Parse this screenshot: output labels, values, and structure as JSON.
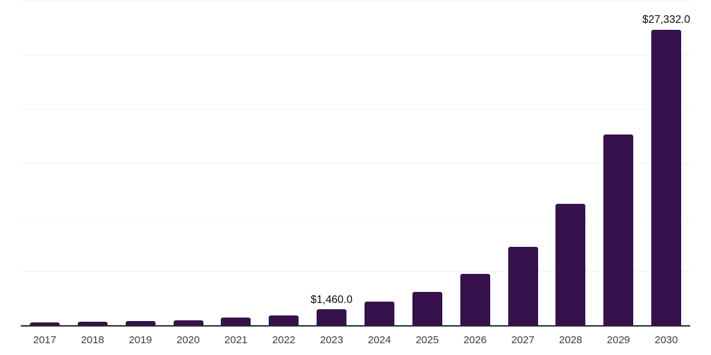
{
  "chart_data": {
    "type": "bar",
    "title": "",
    "xlabel": "",
    "ylabel": "",
    "categories": [
      "2017",
      "2018",
      "2019",
      "2020",
      "2021",
      "2022",
      "2023",
      "2024",
      "2025",
      "2026",
      "2027",
      "2028",
      "2029",
      "2030"
    ],
    "values": [
      250,
      300,
      385,
      480,
      690,
      920,
      1460,
      2170,
      3100,
      4750,
      7250,
      11200,
      17600,
      27332
    ],
    "data_labels": [
      "",
      "",
      "",
      "",
      "",
      "",
      "$1,460.0",
      "",
      "",
      "",
      "",
      "",
      "",
      "$27,332.0"
    ],
    "ylim": [
      0,
      30000
    ],
    "gridline_values": [
      5000,
      10000,
      15000,
      20000,
      25000,
      30000
    ],
    "grid": true,
    "legend": "none",
    "y_tick_labels_visible": false,
    "colors": {
      "bar": "#36114b",
      "gridline": "#f2f2f2",
      "axis_line": "#2b2b2b",
      "x_tick_label": "#3d3d3d",
      "data_label": "#0a0a0a",
      "background": "#ffffff"
    }
  }
}
